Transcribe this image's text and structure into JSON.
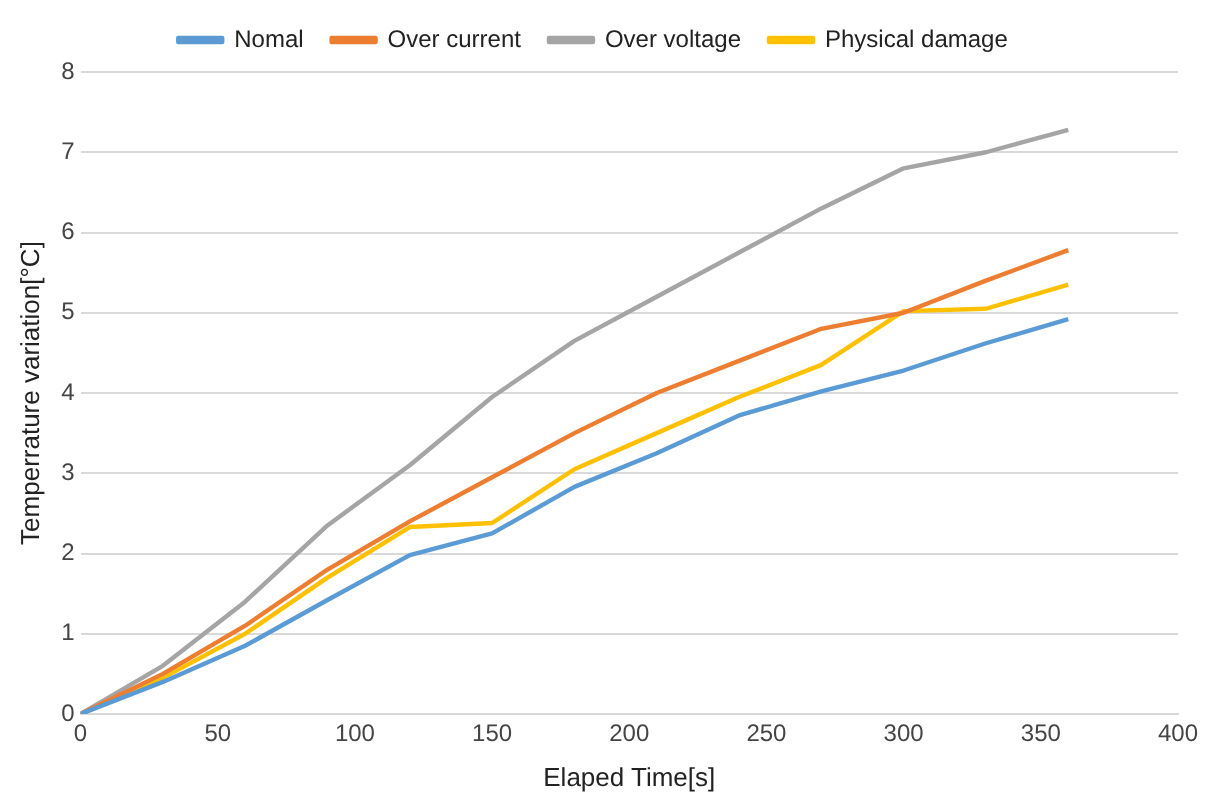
{
  "chart_data": {
    "type": "line",
    "xlabel": "Elaped Time[s]",
    "ylabel": "Temperrature variation[°C]",
    "x": [
      0,
      30,
      60,
      90,
      120,
      150,
      180,
      210,
      240,
      270,
      300,
      330,
      360
    ],
    "series": [
      {
        "name": "Nomal",
        "color": "#5b9bd5",
        "values": [
          0,
          0.4,
          0.85,
          1.42,
          1.98,
          2.25,
          2.83,
          3.25,
          3.72,
          4.02,
          4.28,
          4.62,
          4.92
        ]
      },
      {
        "name": "Over current",
        "color": "#ed7d31",
        "values": [
          0,
          0.5,
          1.1,
          1.8,
          2.4,
          2.95,
          3.5,
          4.0,
          4.4,
          4.8,
          5.0,
          5.4,
          5.78
        ]
      },
      {
        "name": "Over voltage",
        "color": "#a5a5a5",
        "values": [
          0,
          0.6,
          1.4,
          2.35,
          3.1,
          3.95,
          4.65,
          5.2,
          5.75,
          6.3,
          6.8,
          7.0,
          7.28
        ]
      },
      {
        "name": "Physical damage",
        "color": "#ffc000",
        "values": [
          0,
          0.45,
          1.0,
          1.7,
          2.33,
          2.38,
          3.05,
          3.5,
          3.95,
          4.35,
          5.02,
          5.05,
          5.35
        ]
      }
    ],
    "xlim": [
      0,
      400
    ],
    "xticks": [
      0,
      50,
      100,
      150,
      200,
      250,
      300,
      350,
      400
    ],
    "ylim": [
      0,
      8
    ],
    "yticks": [
      0,
      1,
      2,
      3,
      4,
      5,
      6,
      7,
      8
    ],
    "grid": "y",
    "legend": "top",
    "marker": "none",
    "line_style": "solid"
  }
}
